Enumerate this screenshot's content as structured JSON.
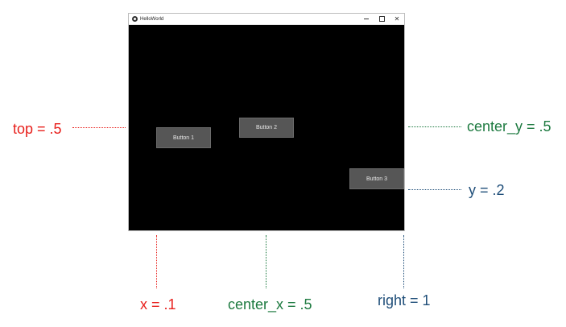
{
  "window": {
    "title": "HelloWorld",
    "controls": {
      "minimize_icon": "minimize-icon",
      "maximize_icon": "maximize-icon",
      "close_glyph": "✕"
    },
    "background": "#000000"
  },
  "buttons": [
    {
      "label": "Button 1"
    },
    {
      "label": "Button 2"
    },
    {
      "label": "Button 3"
    }
  ],
  "annotations": {
    "top": "top = .5",
    "center_y": "center_y = .5",
    "y": "y = .2",
    "x": "x = .1",
    "center_x": "center_x = .5",
    "right": "right = 1"
  },
  "colors": {
    "red": "#e8201c",
    "green": "#1d7a40",
    "blue": "#1f4e79",
    "button": "#565656"
  }
}
